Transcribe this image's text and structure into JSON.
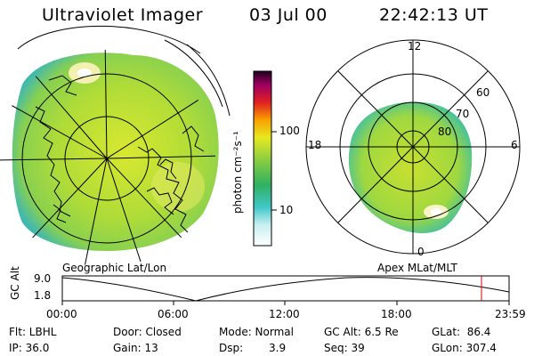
{
  "header": {
    "title": "Ultraviolet Imager",
    "date": "03 Jul 00",
    "time": "22:42:13 UT"
  },
  "colorbar": {
    "unit_label": "photon cm⁻²s⁻¹",
    "ticks": [
      "100",
      "10"
    ]
  },
  "left_panel": {
    "caption": "Geographic Lat/Lon"
  },
  "right_panel": {
    "caption": "Apex MLat/MLT",
    "clock": {
      "top": "12",
      "left": "18",
      "right": "6",
      "bottom": "0"
    },
    "lat_rings": [
      "60",
      "70",
      "80"
    ]
  },
  "timeline": {
    "ylabel": "GC Alt",
    "y_ticks": [
      "9.0",
      "1.8"
    ],
    "x_ticks": [
      "00:00",
      "06:00",
      "12:00",
      "18:00",
      "23:59"
    ],
    "marker_color": "#e00000"
  },
  "status": {
    "filter": "Flt: LBHL",
    "ip": "IP: 36.0",
    "door": "Door: Closed",
    "gain": "Gain: 13",
    "mode": "Mode: Normal",
    "dsp_label": "Dsp:",
    "dsp_value": "3.9",
    "gc_alt": "GC Alt: 6.5 Re",
    "seq": "Seq: 39",
    "glat": "GLat:  86.4",
    "glon": "GLon: 307.4"
  }
}
